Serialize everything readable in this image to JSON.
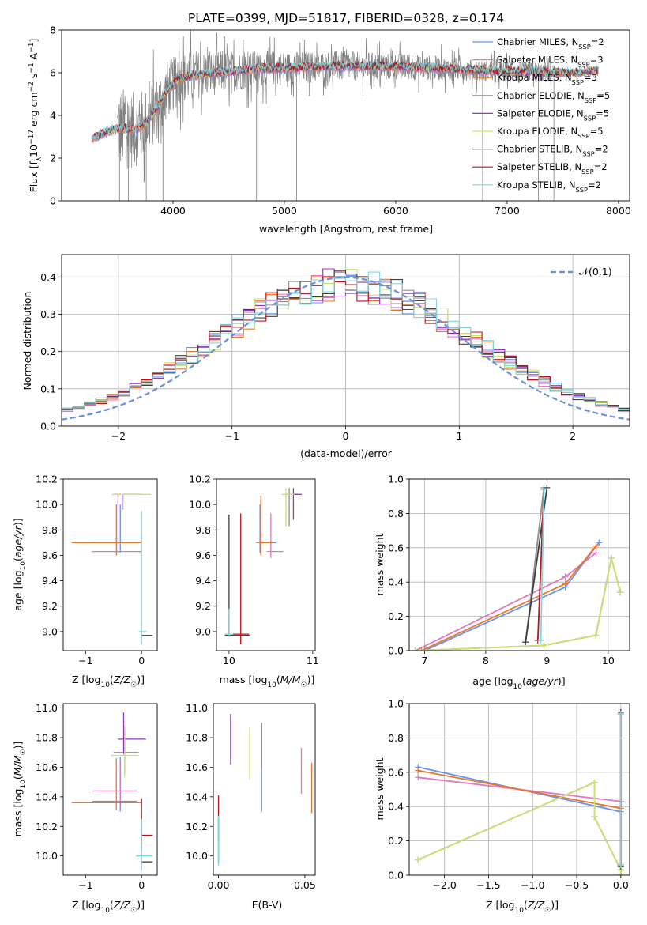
{
  "title": "PLATE=0399, MJD=51817, FIBERID=0328, z=0.174",
  "series_styles": [
    {
      "label": "Chabrier MILES, N<sub>SSP</sub>=2",
      "color": "#6495ED"
    },
    {
      "label": "Salpeter MILES, N<sub>SSP</sub>=3",
      "color": "#E377C2"
    },
    {
      "label": "Kroupa MILES, N<sub>SSP</sub>=3",
      "color": "#E8772E"
    },
    {
      "label": "Chabrier ELODIE, N<sub>SSP</sub>=5",
      "color": "#8C8C8C"
    },
    {
      "label": "Salpeter ELODIE, N<sub>SSP</sub>=5",
      "color": "#9932CC"
    },
    {
      "label": "Kroupa ELODIE, N<sub>SSP</sub>=5",
      "color": "#C7E86A"
    },
    {
      "label": "Chabrier STELIB, N<sub>SSP</sub>=2",
      "color": "#404040"
    },
    {
      "label": "Salpeter STELIB, N<sub>SSP</sub>=2",
      "color": "#C0101A"
    },
    {
      "label": "Kroupa STELIB, N<sub>SSP</sub>=2",
      "color": "#7FD6DE"
    }
  ],
  "chart_data": [
    {
      "id": "spectrum",
      "type": "line",
      "title": "PLATE=0399, MJD=51817, FIBERID=0328, z=0.174",
      "xlabel": "wavelength [Angstrom, rest frame]",
      "ylabel": "Flux [f_λ 10^-17 erg cm^-2 s^-1 A^-1]",
      "xlim": [
        3000,
        8100
      ],
      "ylim": [
        0,
        8
      ],
      "xticks": [
        4000,
        5000,
        6000,
        7000,
        8000
      ],
      "yticks": [
        0,
        2,
        4,
        6,
        8
      ],
      "grid": false,
      "legend": "right",
      "model_continuum": {
        "x": [
          3270,
          3350,
          3450,
          3550,
          3650,
          3750,
          3850,
          3950,
          4050,
          4200,
          4400,
          4600,
          4800,
          5000,
          5200,
          5400,
          5600,
          5800,
          6000,
          6200,
          6400,
          6600,
          6800,
          7000,
          7200,
          7400,
          7600,
          7820
        ],
        "y": [
          2.9,
          3.1,
          3.3,
          3.4,
          3.3,
          3.6,
          4.3,
          5.2,
          5.7,
          5.9,
          6.0,
          6.1,
          6.2,
          6.2,
          6.25,
          6.3,
          6.3,
          6.3,
          6.3,
          6.25,
          6.2,
          6.15,
          6.1,
          6.05,
          6.05,
          6.0,
          6.0,
          6.1
        ]
      },
      "observed_noise_amplitude": {
        "x": [
          3500,
          3800,
          4000,
          4500,
          5000,
          5500,
          6000,
          6500,
          7000,
          7400,
          7500
        ],
        "amp": [
          2.5,
          2.0,
          1.6,
          1.2,
          1.0,
          0.9,
          0.8,
          0.7,
          0.6,
          0.6,
          0.0
        ]
      }
    },
    {
      "id": "residuals",
      "type": "histogram",
      "xlabel": "(data-model)/error",
      "ylabel": "Normed distribution",
      "xlim": [
        -2.5,
        2.5
      ],
      "ylim": [
        0,
        0.46
      ],
      "xticks": [
        -2,
        -1,
        0,
        1,
        2
      ],
      "yticks": [
        0.0,
        0.1,
        0.2,
        0.3,
        0.4
      ],
      "grid": true,
      "legend": "top-right",
      "reference_curve": {
        "name": "𝒩(0,1)",
        "mu": 0,
        "sigma": 1,
        "color": "#6A8FDB",
        "style": "dashed"
      },
      "bin_width": 0.1,
      "histogram_envelope_peak": 0.37
    },
    {
      "id": "z-age",
      "type": "errorbar",
      "xlabel": "Z [log₁₀(Z/Z☉)]",
      "ylabel": "age  [log₁₀(age/yr)]",
      "xlim": [
        -1.4,
        0.28
      ],
      "ylim": [
        8.85,
        10.2
      ],
      "xticks": [
        -1,
        0
      ],
      "yticks": [
        9.0,
        9.2,
        9.4,
        9.6,
        9.8,
        10.0,
        10.2
      ],
      "grid": false,
      "points": [
        {
          "series": 0,
          "x": -0.38,
          "xerr": [
            0.5,
            0.38
          ],
          "y": 9.7,
          "yerr": [
            0.08,
            0.3
          ]
        },
        {
          "series": 1,
          "x": -0.42,
          "xerr": [
            0.47,
            0.42
          ],
          "y": 9.63,
          "yerr": [
            0.03,
            0.45
          ]
        },
        {
          "series": 2,
          "x": -0.45,
          "xerr": [
            0.8,
            0.45
          ],
          "y": 9.7,
          "yerr": [
            0.1,
            0.3
          ]
        },
        {
          "series": 3,
          "x": -0.33,
          "xerr": [
            0.1,
            0.33
          ],
          "y": 10.08,
          "yerr": [
            0.12,
            0.0
          ]
        },
        {
          "series": 4,
          "x": -0.34,
          "xerr": [
            0.15,
            0.34
          ],
          "y": 10.08,
          "yerr": [
            0.12,
            0.0
          ]
        },
        {
          "series": 5,
          "x": -0.33,
          "xerr": [
            0.2,
            0.5
          ],
          "y": 10.08,
          "yerr": [
            0.12,
            0.0
          ]
        },
        {
          "series": 6,
          "x": 0.0,
          "xerr": [
            0.0,
            0.2
          ],
          "y": 8.97,
          "yerr": [
            0.0,
            0.0
          ]
        },
        {
          "series": 7,
          "x": 0.0,
          "xerr": [
            0.0,
            0.0
          ],
          "y": 8.98,
          "yerr": [
            0.0,
            0.0
          ]
        },
        {
          "series": 8,
          "x": 0.0,
          "xerr": [
            0.05,
            0.1
          ],
          "y": 9.0,
          "yerr": [
            0.1,
            0.95
          ]
        }
      ]
    },
    {
      "id": "mass-age",
      "type": "errorbar",
      "xlabel": "mass [log₁₀(M/M☉)]",
      "ylabel": "",
      "xlim": [
        9.85,
        11.03
      ],
      "ylim": [
        8.85,
        10.2
      ],
      "xticks": [
        10,
        11
      ],
      "yticks": [
        9.0,
        9.2,
        9.4,
        9.6,
        9.8,
        10.0,
        10.2
      ],
      "grid": false,
      "points": [
        {
          "series": 0,
          "x": 10.37,
          "xerr": [
            0.05,
            0.2
          ],
          "y": 9.7,
          "yerr": [
            0.08,
            0.3
          ]
        },
        {
          "series": 1,
          "x": 10.5,
          "xerr": [
            0.05,
            0.15
          ],
          "y": 9.63,
          "yerr": [
            0.05,
            0.3
          ]
        },
        {
          "series": 2,
          "x": 10.38,
          "xerr": [
            0.05,
            0.15
          ],
          "y": 9.7,
          "yerr": [
            0.1,
            0.37
          ]
        },
        {
          "series": 3,
          "x": 10.72,
          "xerr": [
            0.05,
            0.1
          ],
          "y": 10.08,
          "yerr": [
            0.25,
            0.05
          ]
        },
        {
          "series": 4,
          "x": 10.77,
          "xerr": [
            0.05,
            0.1
          ],
          "y": 10.08,
          "yerr": [
            0.2,
            0.05
          ]
        },
        {
          "series": 5,
          "x": 10.68,
          "xerr": [
            0.05,
            0.1
          ],
          "y": 10.08,
          "yerr": [
            0.25,
            0.05
          ]
        },
        {
          "series": 6,
          "x": 10.0,
          "xerr": [
            0.05,
            0.25
          ],
          "y": 8.97,
          "yerr": [
            0.01,
            0.95
          ]
        },
        {
          "series": 7,
          "x": 10.14,
          "xerr": [
            0.1,
            0.1
          ],
          "y": 8.98,
          "yerr": [
            0.08,
            0.95
          ]
        },
        {
          "series": 8,
          "x": 10.0,
          "xerr": [
            0.05,
            0.05
          ],
          "y": 8.98,
          "yerr": [
            0.02,
            0.2
          ]
        }
      ]
    },
    {
      "id": "age-weight",
      "type": "line",
      "xlabel": "age  [log₁₀(age/yr)]",
      "ylabel": "mass weight",
      "xlim": [
        6.75,
        10.35
      ],
      "ylim": [
        0,
        1.0
      ],
      "xticks": [
        7,
        8,
        9,
        10
      ],
      "yticks": [
        0.0,
        0.2,
        0.4,
        0.6,
        0.8,
        1.0
      ],
      "grid": true,
      "series": [
        {
          "series": 0,
          "x": [
            7.0,
            9.3,
            9.85
          ],
          "y": [
            0.0,
            0.37,
            0.63
          ]
        },
        {
          "series": 1,
          "x": [
            6.85,
            9.3,
            9.8
          ],
          "y": [
            0.0,
            0.43,
            0.57
          ]
        },
        {
          "series": 2,
          "x": [
            6.95,
            9.3,
            9.8
          ],
          "y": [
            0.0,
            0.39,
            0.61
          ]
        },
        {
          "series": 3,
          "x": [
            8.65,
            8.95
          ],
          "y": [
            0.05,
            0.95
          ]
        },
        {
          "series": 4,
          "x": [
            6.85,
            8.95,
            9.8,
            10.05,
            10.2
          ],
          "y": [
            0.0,
            0.03,
            0.09,
            0.54,
            0.34
          ]
        },
        {
          "series": 5,
          "x": [
            6.85,
            8.95,
            9.8,
            10.05,
            10.2
          ],
          "y": [
            0.0,
            0.03,
            0.09,
            0.54,
            0.34
          ]
        },
        {
          "series": 6,
          "x": [
            8.65,
            9.0
          ],
          "y": [
            0.05,
            0.95
          ]
        },
        {
          "series": 7,
          "x": [
            8.85,
            8.95
          ],
          "y": [
            0.06,
            0.94
          ]
        },
        {
          "series": 8,
          "x": [
            8.9,
            8.95
          ],
          "y": [
            0.06,
            0.94
          ]
        }
      ]
    },
    {
      "id": "z-mass",
      "type": "errorbar",
      "xlabel": "Z [log₁₀(Z/Z☉)]",
      "ylabel": "mass [log₁₀(M/M☉)]",
      "xlim": [
        -1.4,
        0.28
      ],
      "ylim": [
        9.87,
        11.03
      ],
      "xticks": [
        -1,
        0
      ],
      "yticks": [
        10.0,
        10.2,
        10.4,
        10.6,
        10.8,
        11.0
      ],
      "grid": false,
      "points": [
        {
          "series": 0,
          "x": -0.38,
          "xerr": [
            0.5,
            0.3
          ],
          "y": 10.37,
          "yerr": [
            0.07,
            0.3
          ]
        },
        {
          "series": 1,
          "x": -0.38,
          "xerr": [
            0.5,
            0.3
          ],
          "y": 10.44,
          "yerr": [
            0.1,
            0.2
          ]
        },
        {
          "series": 2,
          "x": -0.45,
          "xerr": [
            0.8,
            0.45
          ],
          "y": 10.36,
          "yerr": [
            0.05,
            0.3
          ]
        },
        {
          "series": 3,
          "x": -0.3,
          "xerr": [
            0.2,
            0.25
          ],
          "y": 10.7,
          "yerr": [
            0.15,
            0.15
          ]
        },
        {
          "series": 4,
          "x": -0.32,
          "xerr": [
            0.1,
            0.4
          ],
          "y": 10.79,
          "yerr": [
            0.1,
            0.18
          ]
        },
        {
          "series": 5,
          "x": -0.3,
          "xerr": [
            0.25,
            0.25
          ],
          "y": 10.68,
          "yerr": [
            0.15,
            0.2
          ]
        },
        {
          "series": 6,
          "x": 0.0,
          "xerr": [
            0.0,
            0.2
          ],
          "y": 9.96,
          "yerr": [
            0.0,
            0.0
          ]
        },
        {
          "series": 7,
          "x": 0.0,
          "xerr": [
            0.0,
            0.2
          ],
          "y": 10.14,
          "yerr": [
            0.1,
            0.25
          ]
        },
        {
          "series": 8,
          "x": 0.0,
          "xerr": [
            0.1,
            0.2
          ],
          "y": 10.0,
          "yerr": [
            0.1,
            0.25
          ]
        }
      ]
    },
    {
      "id": "ebv-mass",
      "type": "errorbar",
      "xlabel": "E(B-V)",
      "ylabel": "",
      "xlim": [
        -0.003,
        0.056
      ],
      "ylim": [
        9.87,
        11.03
      ],
      "xticks": [
        0.0,
        0.05
      ],
      "yticks": [
        10.0,
        10.2,
        10.4,
        10.6,
        10.8,
        11.0
      ],
      "grid": false,
      "points": [
        {
          "series": 0,
          "x": 0.025,
          "xerr": [
            0,
            0
          ],
          "y": 10.6,
          "yerr": [
            0.3,
            0.3
          ]
        },
        {
          "series": 1,
          "x": 0.048,
          "xerr": [
            0,
            0
          ],
          "y": 10.55,
          "yerr": [
            0.13,
            0.18
          ]
        },
        {
          "series": 2,
          "x": 0.054,
          "xerr": [
            0,
            0
          ],
          "y": 10.46,
          "yerr": [
            0.17,
            0.17
          ]
        },
        {
          "series": 3,
          "x": 0.025,
          "xerr": [
            0,
            0
          ],
          "y": 10.75,
          "yerr": [
            0.15,
            0.15
          ]
        },
        {
          "series": 4,
          "x": 0.007,
          "xerr": [
            0,
            0
          ],
          "y": 10.79,
          "yerr": [
            0.17,
            0.17
          ]
        },
        {
          "series": 5,
          "x": 0.018,
          "xerr": [
            0,
            0
          ],
          "y": 10.69,
          "yerr": [
            0.17,
            0.18
          ]
        },
        {
          "series": 6,
          "x": 0.0,
          "xerr": [
            0,
            0
          ],
          "y": 10.15,
          "yerr": [
            0.2,
            0.1
          ]
        },
        {
          "series": 7,
          "x": 0.0,
          "xerr": [
            0,
            0
          ],
          "y": 10.25,
          "yerr": [
            0.15,
            0.16
          ]
        },
        {
          "series": 8,
          "x": 0.0,
          "xerr": [
            0,
            0
          ],
          "y": 10.1,
          "yerr": [
            0.17,
            0.17
          ]
        }
      ]
    },
    {
      "id": "z-weight",
      "type": "line",
      "xlabel": "Z [log₁₀(Z/Z☉)]",
      "ylabel": "mass weight",
      "xlim": [
        -2.4,
        0.1
      ],
      "ylim": [
        0,
        1.0
      ],
      "xticks": [
        -2.0,
        -1.5,
        -1.0,
        -0.5,
        0.0
      ],
      "yticks": [
        0.0,
        0.2,
        0.4,
        0.6,
        0.8,
        1.0
      ],
      "grid": true,
      "series": [
        {
          "series": 0,
          "x": [
            -2.3,
            0.0
          ],
          "y": [
            0.63,
            0.37
          ]
        },
        {
          "series": 1,
          "x": [
            -2.3,
            0.0
          ],
          "y": [
            0.57,
            0.43
          ]
        },
        {
          "series": 2,
          "x": [
            -2.3,
            0.0
          ],
          "y": [
            0.61,
            0.39
          ]
        },
        {
          "series": 3,
          "x": [
            0.0,
            0.0
          ],
          "y": [
            0.05,
            0.95
          ]
        },
        {
          "series": 4,
          "x": [
            -2.3,
            -0.3,
            -0.3,
            0.0,
            0.0
          ],
          "y": [
            0.09,
            0.54,
            0.34,
            0.03,
            0.0
          ]
        },
        {
          "series": 5,
          "x": [
            -2.3,
            -0.3,
            -0.3,
            0.0,
            0.0
          ],
          "y": [
            0.09,
            0.54,
            0.34,
            0.03,
            0.0
          ]
        },
        {
          "series": 6,
          "x": [
            0.0,
            0.0
          ],
          "y": [
            0.05,
            0.95
          ]
        },
        {
          "series": 7,
          "x": [
            0.0,
            0.0
          ],
          "y": [
            0.06,
            0.94
          ]
        },
        {
          "series": 8,
          "x": [
            0.0,
            0.0
          ],
          "y": [
            0.06,
            0.94
          ]
        }
      ]
    }
  ]
}
